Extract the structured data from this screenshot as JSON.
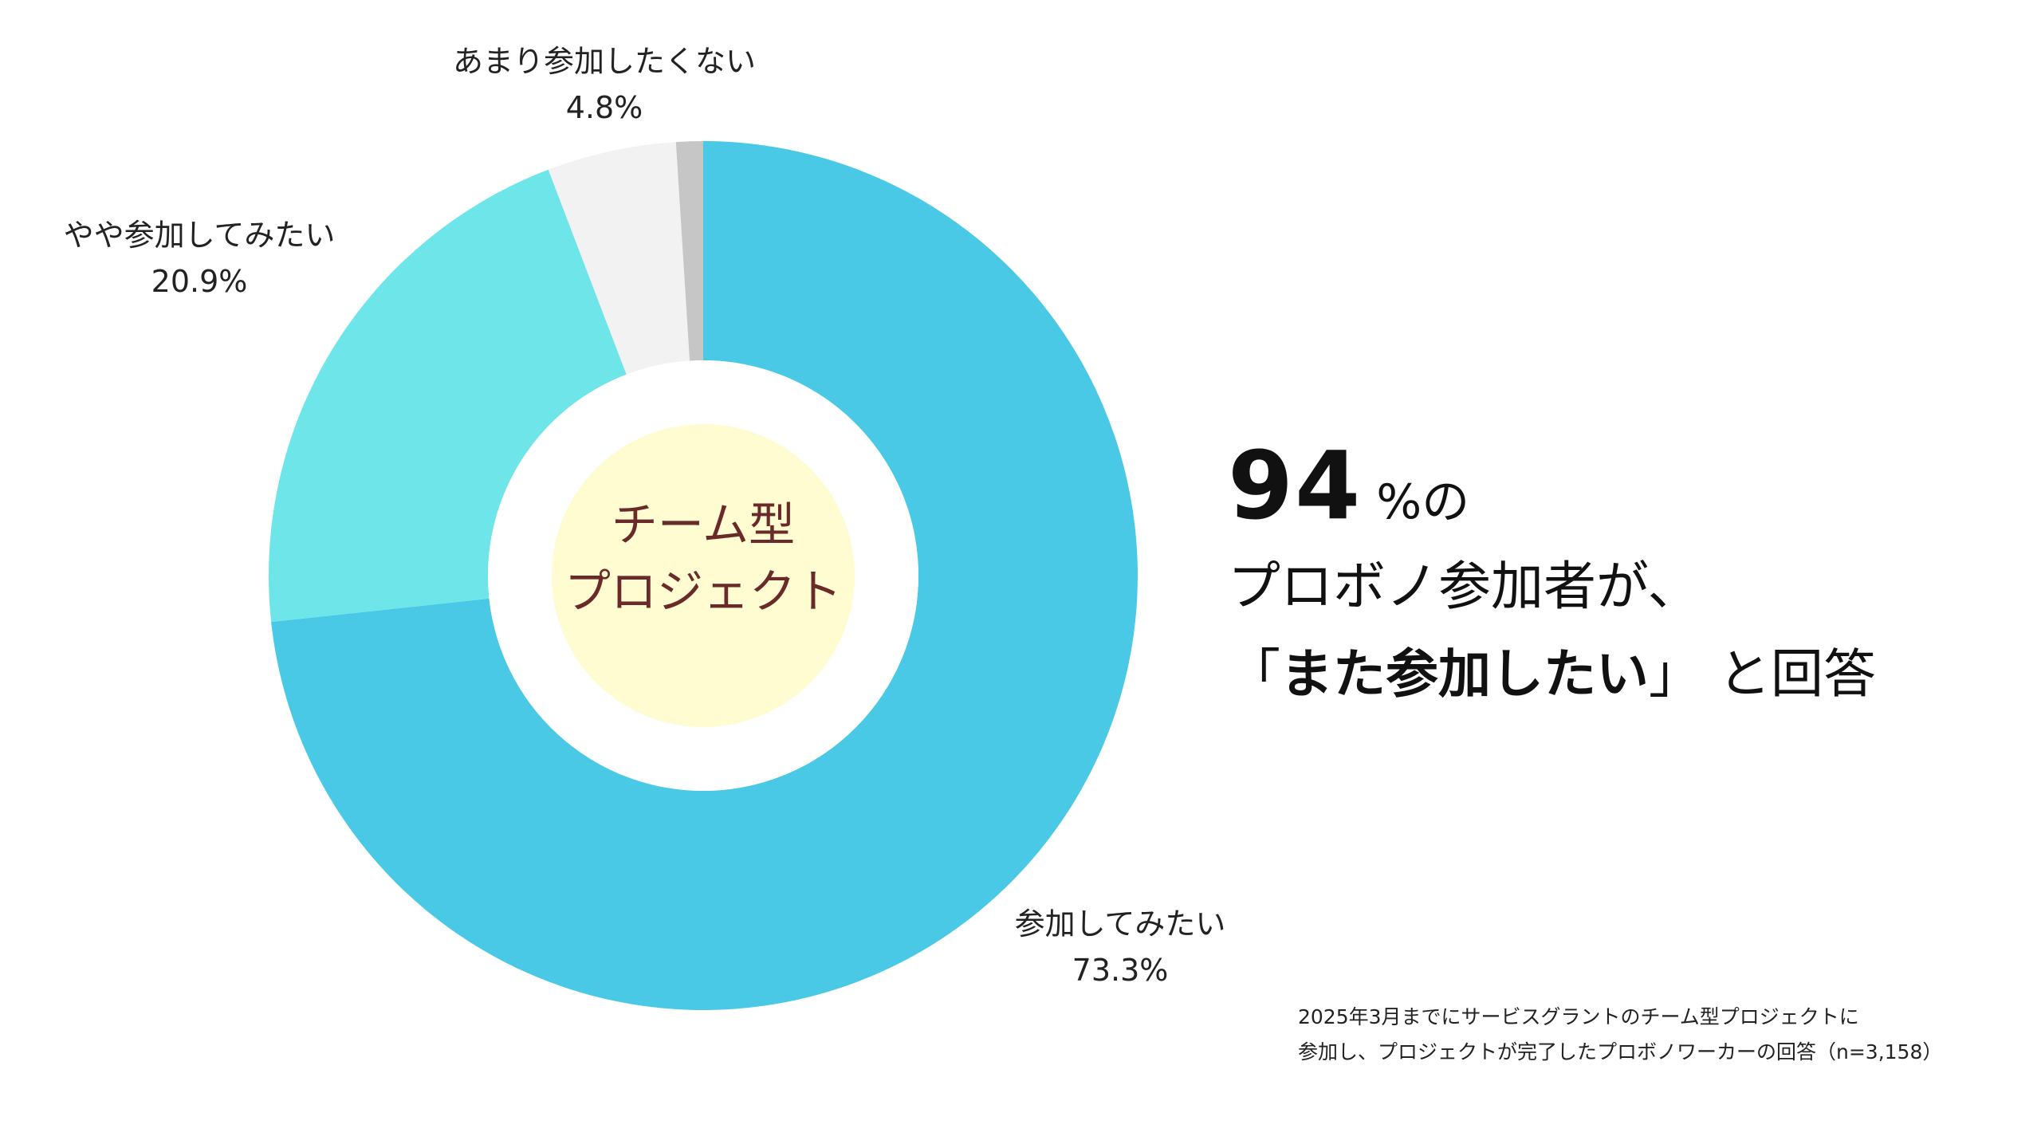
{
  "chart_data": {
    "type": "pie",
    "donut": true,
    "center_label": [
      "チーム型",
      "プロジェクト"
    ],
    "slices": [
      {
        "label": "参加してみたい",
        "value": 73.3,
        "value_label": "73.3%",
        "color": "#4AC9E7"
      },
      {
        "label": "やや参加してみたい",
        "value": 20.9,
        "value_label": "20.9%",
        "color": "#6EE5E8"
      },
      {
        "label": "あまり参加したくない",
        "value": 4.8,
        "value_label": "4.8%",
        "color": "#F2F2F2"
      },
      {
        "label": "",
        "value": 1.0,
        "value_label": "",
        "color": "#C6C6C6"
      }
    ],
    "center_fill": "#FEFCD0",
    "legend": "none"
  },
  "headline": {
    "number": "94",
    "number_suffix": "%の",
    "line2": "プロボノ参加者が、",
    "quote_open": "「",
    "quote_text": "また参加したい",
    "quote_close": "」",
    "line3_tail": "と回答"
  },
  "footnote": {
    "line1": "2025年3月までにサービスグラントのチーム型プロジェクトに",
    "line2": "参加し、プロジェクトが完了したプロボノワーカーの回答（n=3,158）"
  }
}
